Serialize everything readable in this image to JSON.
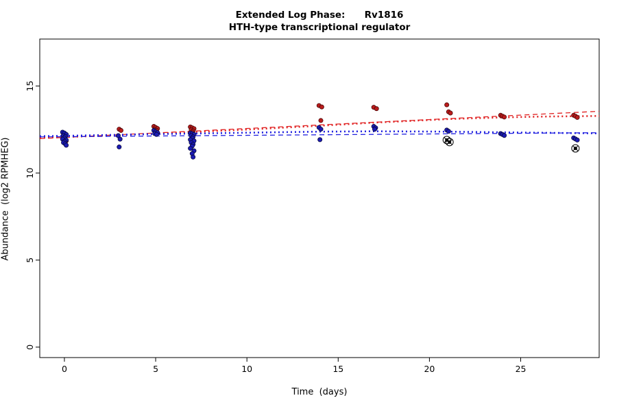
{
  "chart_data": {
    "type": "scatter",
    "title": "Extended Log Phase:      Rv1816",
    "subtitle": "HTH-type transcriptional regulator",
    "xlabel": "Time  (days)",
    "ylabel": "Abundance  (log2 RPMHEG)",
    "xlim": [
      -1.35,
      29.3
    ],
    "ylim": [
      -0.6,
      17.7
    ],
    "xticks": [
      0,
      5,
      10,
      15,
      20,
      25
    ],
    "yticks": [
      0,
      5,
      10,
      15
    ],
    "grid": false,
    "legend": "none",
    "series": [
      {
        "name": "red-condition",
        "color": "#bb1c1c",
        "edge": "#4d0a0a",
        "points": [
          [
            -0.05,
            12.25
          ],
          [
            0.05,
            12.12
          ],
          [
            0.0,
            11.98
          ],
          [
            0.1,
            11.85
          ],
          [
            3.0,
            12.52
          ],
          [
            3.1,
            12.45
          ],
          [
            4.9,
            12.68
          ],
          [
            5.0,
            12.62
          ],
          [
            5.1,
            12.56
          ],
          [
            4.95,
            12.5
          ],
          [
            5.05,
            12.45
          ],
          [
            6.9,
            12.65
          ],
          [
            7.0,
            12.6
          ],
          [
            7.1,
            12.55
          ],
          [
            6.95,
            12.48
          ],
          [
            7.05,
            12.42
          ],
          [
            7.0,
            12.35
          ],
          [
            13.95,
            13.88
          ],
          [
            14.1,
            13.8
          ],
          [
            14.05,
            13.02
          ],
          [
            16.95,
            13.78
          ],
          [
            17.1,
            13.7
          ],
          [
            20.95,
            13.92
          ],
          [
            21.05,
            13.52
          ],
          [
            21.15,
            13.45
          ],
          [
            23.9,
            13.32
          ],
          [
            24.0,
            13.27
          ],
          [
            24.1,
            13.22
          ],
          [
            27.9,
            13.32
          ],
          [
            28.0,
            13.27
          ],
          [
            28.1,
            13.2
          ]
        ]
      },
      {
        "name": "blue-condition",
        "color": "#1c1cb4",
        "edge": "#09093f",
        "points": [
          [
            -0.1,
            12.35
          ],
          [
            0,
            12.3
          ],
          [
            0.1,
            12.22
          ],
          [
            -0.05,
            12.15
          ],
          [
            0.05,
            12.1
          ],
          [
            0,
            12.02
          ],
          [
            -0.1,
            11.95
          ],
          [
            0.1,
            11.9
          ],
          [
            0,
            11.82
          ],
          [
            -0.05,
            11.75
          ],
          [
            0.05,
            11.68
          ],
          [
            0.1,
            11.6
          ],
          [
            2.95,
            12.15
          ],
          [
            3.05,
            11.95
          ],
          [
            3.0,
            11.5
          ],
          [
            4.9,
            12.45
          ],
          [
            5.0,
            12.38
          ],
          [
            5.1,
            12.32
          ],
          [
            4.95,
            12.27
          ],
          [
            5.05,
            12.22
          ],
          [
            6.9,
            12.3
          ],
          [
            7.0,
            12.27
          ],
          [
            7.1,
            12.22
          ],
          [
            6.95,
            12.15
          ],
          [
            7.05,
            12.08
          ],
          [
            7.0,
            12.0
          ],
          [
            6.9,
            11.92
          ],
          [
            7.1,
            11.85
          ],
          [
            6.95,
            11.75
          ],
          [
            7.05,
            11.65
          ],
          [
            7.0,
            11.55
          ],
          [
            6.9,
            11.42
          ],
          [
            7.1,
            11.28
          ],
          [
            7.0,
            11.12
          ],
          [
            7.05,
            10.92
          ],
          [
            13.95,
            12.62
          ],
          [
            14.05,
            12.52
          ],
          [
            14.0,
            11.92
          ],
          [
            16.95,
            12.68
          ],
          [
            17.05,
            12.6
          ],
          [
            17.0,
            12.52
          ],
          [
            20.95,
            12.47
          ],
          [
            21.05,
            12.4
          ],
          [
            23.9,
            12.27
          ],
          [
            24.0,
            12.22
          ],
          [
            24.1,
            12.16
          ],
          [
            27.9,
            12.02
          ],
          [
            28.0,
            11.96
          ],
          [
            28.1,
            11.9
          ]
        ]
      }
    ],
    "outliers": {
      "symbol": "circle-cross",
      "dot_color": "#141414",
      "points": [
        [
          20.95,
          11.9
        ],
        [
          21.1,
          11.78
        ],
        [
          28.0,
          11.42
        ]
      ]
    },
    "trend_lines": [
      {
        "name": "red-linear-fit",
        "color": "#e02020",
        "width": 1.3,
        "dash": "7 5",
        "points": [
          [
            -1.35,
            11.98
          ],
          [
            29.3,
            13.55
          ]
        ]
      },
      {
        "name": "red-smooth-fit",
        "color": "#e02020",
        "width": 2.6,
        "dash": "2 4",
        "points": [
          [
            -1.35,
            12.02
          ],
          [
            0,
            12.07
          ],
          [
            3,
            12.18
          ],
          [
            5,
            12.27
          ],
          [
            7,
            12.36
          ],
          [
            10,
            12.5
          ],
          [
            14,
            12.72
          ],
          [
            17,
            12.9
          ],
          [
            21,
            13.1
          ],
          [
            24,
            13.2
          ],
          [
            26.5,
            13.25
          ],
          [
            29.3,
            13.28
          ]
        ]
      },
      {
        "name": "blue-linear-fit",
        "color": "#2020e0",
        "width": 1.3,
        "dash": "7 5",
        "points": [
          [
            -1.35,
            12.08
          ],
          [
            29.3,
            12.32
          ]
        ]
      },
      {
        "name": "blue-smooth-fit",
        "color": "#2020e0",
        "width": 2.6,
        "dash": "2 4",
        "points": [
          [
            -1.35,
            12.12
          ],
          [
            0,
            12.14
          ],
          [
            3,
            12.2
          ],
          [
            5,
            12.24
          ],
          [
            7,
            12.27
          ],
          [
            10,
            12.32
          ],
          [
            14,
            12.38
          ],
          [
            17,
            12.4
          ],
          [
            21,
            12.38
          ],
          [
            24,
            12.34
          ],
          [
            29.3,
            12.28
          ]
        ]
      }
    ]
  }
}
